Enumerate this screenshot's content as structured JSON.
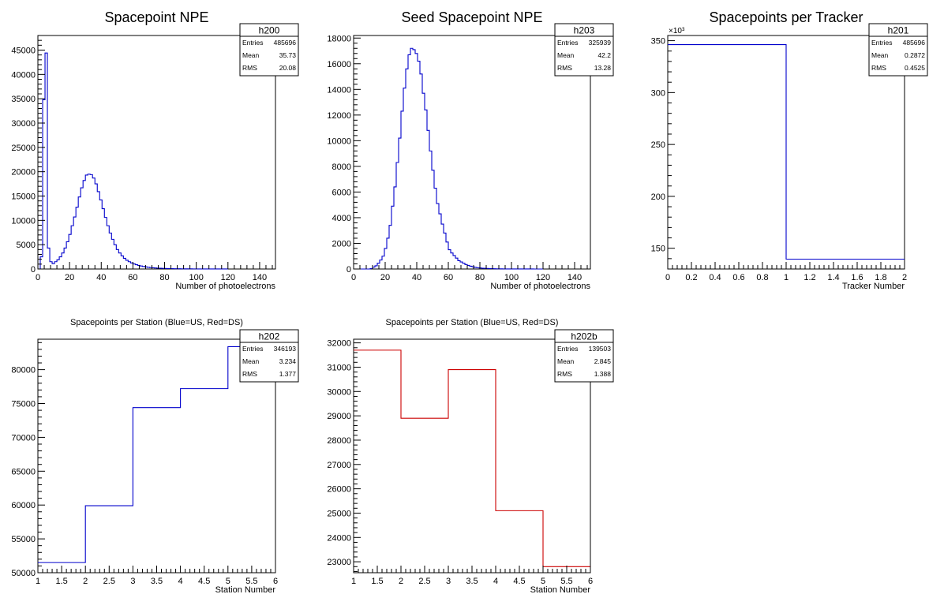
{
  "chart_data": [
    {
      "id": "p1",
      "type": "bar",
      "title": "Spacepoint NPE",
      "xlabel": "Number of photoelectrons",
      "ylabel": "",
      "xlim": [
        0,
        150
      ],
      "ylim": [
        0,
        48000
      ],
      "x_ticks": [
        0,
        20,
        40,
        60,
        80,
        100,
        120,
        140
      ],
      "x_tick_labels": [
        "0",
        "20",
        "40",
        "60",
        "80",
        "100",
        "120",
        "140"
      ],
      "y_ticks": [
        0,
        5000,
        10000,
        15000,
        20000,
        25000,
        30000,
        35000,
        40000,
        45000
      ],
      "y_tick_labels": [
        "0",
        "5000",
        "10000",
        "15000",
        "20000",
        "25000",
        "30000",
        "35000",
        "40000",
        "45000"
      ],
      "exponent": "",
      "line_color": "#0000cc",
      "stats": {
        "name": "h200",
        "rows": [
          [
            "Entries",
            "485696"
          ],
          [
            "Mean",
            "35.73"
          ],
          [
            "RMS",
            "20.08"
          ]
        ]
      },
      "bin_edges": [
        0,
        1.5,
        3,
        4.5,
        6,
        7.5,
        9,
        10.5,
        12,
        13.5,
        15,
        16.5,
        18,
        19.5,
        21,
        22.5,
        24,
        25.5,
        27,
        28.5,
        30,
        31.5,
        33,
        34.5,
        36,
        37.5,
        39,
        40.5,
        42,
        43.5,
        45,
        46.5,
        48,
        49.5,
        51,
        52.5,
        54,
        55.5,
        57,
        58.5,
        60,
        61.5,
        63,
        64.5,
        66,
        67.5,
        69,
        70.5,
        72,
        73.5,
        75,
        76.5,
        78,
        79.5,
        81,
        82.5,
        84,
        85.5,
        87,
        88.5,
        90,
        91.5,
        93,
        94.5,
        96,
        97.5,
        99,
        100.5,
        102,
        103.5,
        105,
        106.5,
        108,
        109.5,
        111,
        112.5,
        114,
        115.5,
        117,
        118.5,
        120
      ],
      "values": [
        0,
        2500,
        34800,
        44400,
        4300,
        1500,
        1100,
        1500,
        1900,
        2500,
        3300,
        4300,
        5600,
        7100,
        8900,
        10700,
        12700,
        14800,
        16700,
        18200,
        19300,
        19500,
        19400,
        18700,
        17500,
        15900,
        14200,
        12400,
        10600,
        8900,
        7400,
        6100,
        5000,
        4000,
        3300,
        2700,
        2200,
        1800,
        1500,
        1250,
        1050,
        880,
        740,
        620,
        520,
        430,
        360,
        300,
        250,
        210,
        180,
        150,
        130,
        110,
        95,
        80,
        70,
        60,
        52,
        45,
        40,
        35,
        30,
        27,
        24,
        21,
        19,
        17,
        15,
        14,
        12,
        11,
        10,
        9,
        8,
        7,
        6,
        5,
        4,
        3
      ]
    },
    {
      "id": "p2",
      "type": "bar",
      "title": "Seed Spacepoint NPE",
      "xlabel": "Number of photoelectrons",
      "ylabel": "",
      "xlim": [
        0,
        150
      ],
      "ylim": [
        0,
        18200
      ],
      "x_ticks": [
        0,
        20,
        40,
        60,
        80,
        100,
        120,
        140
      ],
      "x_tick_labels": [
        "0",
        "20",
        "40",
        "60",
        "80",
        "100",
        "120",
        "140"
      ],
      "y_ticks": [
        0,
        2000,
        4000,
        6000,
        8000,
        10000,
        12000,
        14000,
        16000,
        18000
      ],
      "y_tick_labels": [
        "0",
        "2000",
        "4000",
        "6000",
        "8000",
        "10000",
        "12000",
        "14000",
        "16000",
        "18000"
      ],
      "exponent": "",
      "line_color": "#0000cc",
      "stats": {
        "name": "h203",
        "rows": [
          [
            "Entries",
            "325939"
          ],
          [
            "Mean",
            "42.2"
          ],
          [
            "RMS",
            "13.28"
          ]
        ]
      },
      "bin_edges": [
        0,
        1.5,
        3,
        4.5,
        6,
        7.5,
        9,
        10.5,
        12,
        13.5,
        15,
        16.5,
        18,
        19.5,
        21,
        22.5,
        24,
        25.5,
        27,
        28.5,
        30,
        31.5,
        33,
        34.5,
        36,
        37.5,
        39,
        40.5,
        42,
        43.5,
        45,
        46.5,
        48,
        49.5,
        51,
        52.5,
        54,
        55.5,
        57,
        58.5,
        60,
        61.5,
        63,
        64.5,
        66,
        67.5,
        69,
        70.5,
        72,
        73.5,
        75,
        76.5,
        78,
        79.5,
        81,
        82.5,
        84,
        85.5,
        87,
        88.5,
        90,
        91.5,
        93,
        94.5,
        96,
        97.5,
        99,
        100.5,
        102,
        103.5,
        105,
        106.5,
        108,
        109.5,
        111,
        112.5,
        114,
        115.5,
        117,
        118.5,
        120
      ],
      "values": [
        0,
        0,
        0,
        0,
        0,
        0,
        0,
        30,
        150,
        250,
        450,
        700,
        1000,
        1600,
        2400,
        3400,
        4900,
        6400,
        8300,
        10200,
        12300,
        14100,
        15600,
        16700,
        17200,
        17100,
        16800,
        16200,
        15200,
        13700,
        12400,
        10800,
        9200,
        7700,
        6300,
        5100,
        4300,
        3500,
        2800,
        2100,
        1500,
        1250,
        1050,
        850,
        650,
        550,
        450,
        350,
        280,
        220,
        170,
        130,
        100,
        80,
        60,
        50,
        40,
        30,
        25,
        20,
        15,
        12,
        10,
        8,
        7,
        6,
        5,
        4,
        3,
        3,
        2,
        2,
        1,
        1,
        1,
        1,
        0,
        0,
        0,
        0
      ]
    },
    {
      "id": "p3",
      "type": "bar",
      "title": "Spacepoints per Tracker",
      "xlabel": "Tracker Number",
      "ylabel": "",
      "xlim": [
        0,
        2
      ],
      "ylim": [
        130,
        355
      ],
      "x_ticks": [
        0,
        0.2,
        0.4,
        0.6,
        0.8,
        1,
        1.2,
        1.4,
        1.6,
        1.8,
        2
      ],
      "x_tick_labels": [
        "0",
        "0.2",
        "0.4",
        "0.6",
        "0.8",
        "1",
        "1.2",
        "1.4",
        "1.6",
        "1.8",
        "2"
      ],
      "y_ticks": [
        150,
        200,
        250,
        300,
        350
      ],
      "y_tick_labels": [
        "150",
        "200",
        "250",
        "300",
        "350"
      ],
      "exponent": "×10³",
      "line_color": "#0000cc",
      "stats": {
        "name": "h201",
        "rows": [
          [
            "Entries",
            "485696"
          ],
          [
            "Mean",
            "0.2872"
          ],
          [
            "RMS",
            "0.4525"
          ]
        ]
      },
      "bin_edges": [
        0,
        1,
        2
      ],
      "values": [
        346.2,
        139.5
      ]
    },
    {
      "id": "p4",
      "type": "bar",
      "title": "Spacepoints per Station (Blue=US, Red=DS)",
      "xlabel": "Station Number",
      "ylabel": "",
      "xlim": [
        1,
        6
      ],
      "ylim": [
        50000,
        84500
      ],
      "x_ticks": [
        1,
        1.5,
        2,
        2.5,
        3,
        3.5,
        4,
        4.5,
        5,
        5.5,
        6
      ],
      "x_tick_labels": [
        "1",
        "1.5",
        "2",
        "2.5",
        "3",
        "3.5",
        "4",
        "4.5",
        "5",
        "5.5",
        "6"
      ],
      "y_ticks": [
        50000,
        55000,
        60000,
        65000,
        70000,
        75000,
        80000
      ],
      "y_tick_labels": [
        "50000",
        "55000",
        "60000",
        "65000",
        "70000",
        "75000",
        "80000"
      ],
      "exponent": "",
      "line_color": "#0000cc",
      "stats": {
        "name": "h202",
        "rows": [
          [
            "Entries",
            "346193"
          ],
          [
            "Mean",
            "3.234"
          ],
          [
            "RMS",
            "1.377"
          ]
        ]
      },
      "bin_edges": [
        1,
        2,
        3,
        4,
        5,
        6
      ],
      "values": [
        51500,
        59900,
        74400,
        77200,
        83400
      ]
    },
    {
      "id": "p5",
      "type": "bar",
      "title": "Spacepoints per Station (Blue=US, Red=DS)",
      "xlabel": "Station Number",
      "ylabel": "",
      "xlim": [
        1,
        6
      ],
      "ylim": [
        22550,
        32150
      ],
      "x_ticks": [
        1,
        1.5,
        2,
        2.5,
        3,
        3.5,
        4,
        4.5,
        5,
        5.5,
        6
      ],
      "x_tick_labels": [
        "1",
        "1.5",
        "2",
        "2.5",
        "3",
        "3.5",
        "4",
        "4.5",
        "5",
        "5.5",
        "6"
      ],
      "y_ticks": [
        23000,
        24000,
        25000,
        26000,
        27000,
        28000,
        29000,
        30000,
        31000,
        32000
      ],
      "y_tick_labels": [
        "23000",
        "24000",
        "25000",
        "26000",
        "27000",
        "28000",
        "29000",
        "30000",
        "31000",
        "32000"
      ],
      "exponent": "",
      "line_color": "#cc0000",
      "stats": {
        "name": "h202b",
        "rows": [
          [
            "Entries",
            "139503"
          ],
          [
            "Mean",
            "2.845"
          ],
          [
            "RMS",
            "1.388"
          ]
        ]
      },
      "bin_edges": [
        1,
        2,
        3,
        4,
        5,
        6
      ],
      "values": [
        31700,
        28900,
        30900,
        25100,
        22800
      ]
    }
  ]
}
